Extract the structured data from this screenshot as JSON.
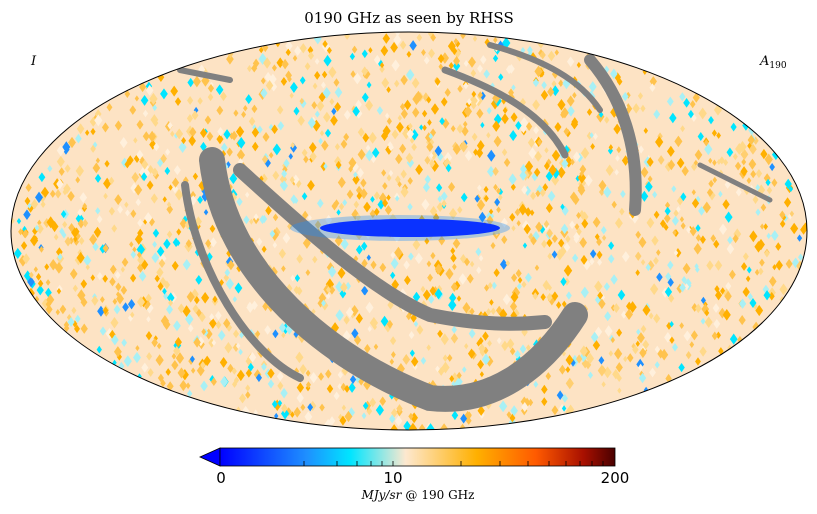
{
  "chart_data": {
    "type": "heatmap",
    "projection": "mollweide",
    "title": "0190 GHz as seen by RHSS",
    "corner_left": "I",
    "corner_right_main": "A",
    "corner_right_sub": "190",
    "colorbar": {
      "tick_labels": [
        "0",
        "10",
        "200"
      ],
      "tick_values": [
        0,
        10,
        200
      ],
      "scale": "log-like",
      "unit_main": "MJy/sr",
      "unit_at": "@",
      "unit_freq": "190 GHz",
      "extend": "min",
      "colors": [
        "#0000ff",
        "#1e90ff",
        "#00e5ff",
        "#fde8cf",
        "#ffb000",
        "#ff5a00",
        "#a81000",
        "#4a0000"
      ]
    },
    "map": {
      "background_color": "#fde3c4",
      "masked_color": "#808080",
      "features": [
        "band of low values (blue) near map center",
        "gray masked arcs across lower-left and upper-right",
        "scattered cyan and orange pixels across the sky"
      ]
    }
  }
}
